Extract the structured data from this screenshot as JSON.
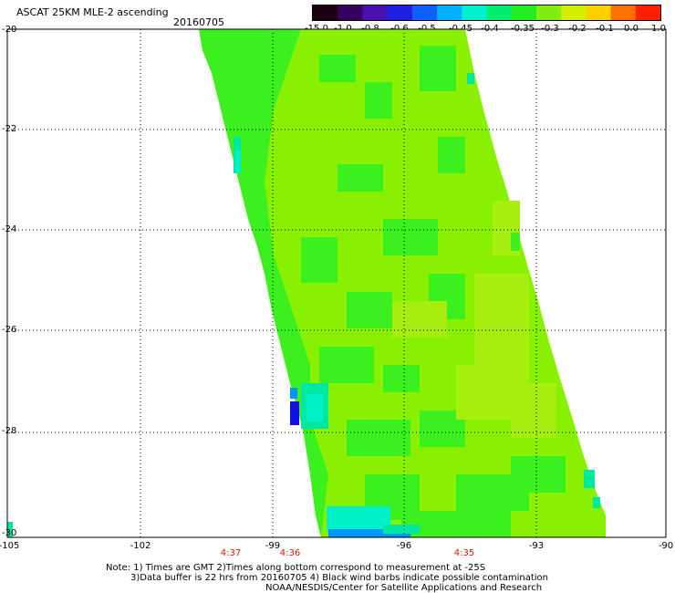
{
  "header": {
    "title": "ASCAT 25KM MLE-2 ascending",
    "date": "20160705"
  },
  "colorbar": {
    "labels": [
      "-15.0",
      "-1.0",
      "-0.8",
      "-0.6",
      "-0.5",
      "-0.45",
      "-0.4",
      "-0.35",
      "-0.3",
      "-0.2",
      "-0.1",
      "0.0",
      "1.0"
    ],
    "colors": [
      "#1a0010",
      "#3a0060",
      "#4a10b0",
      "#2020e0",
      "#1060ff",
      "#00b0ff",
      "#00f0d0",
      "#00ee70",
      "#20ee20",
      "#80ee10",
      "#d0f000",
      "#ffd000",
      "#ff7000",
      "#ff2000"
    ]
  },
  "map": {
    "lat_labels": [
      "-20",
      "-22",
      "-24",
      "-26",
      "-28",
      "-30"
    ],
    "lon_labels": [
      "-105",
      "-102",
      "-99",
      "-96",
      "-93",
      "-90"
    ],
    "time_labels": [
      "4:37",
      "4:36",
      "4:35"
    ],
    "swath_colors": {
      "main": "#88f000",
      "green": "#3cf020",
      "lime": "#a6ee10",
      "cyan": "#00f0c8",
      "teal": "#00e8a0",
      "blue": "#1010e0",
      "skyblue": "#0098ff"
    }
  },
  "notes": {
    "line1": "Note: 1) Times are GMT 2)Times along bottom correspond to measurement at -25S",
    "line2": "3)Data buffer is 22 hrs from 20160705 4) Black wind barbs indicate possible contamination",
    "line3": "NOAA/NESDIS/Center for Satellite Applications and Research"
  }
}
